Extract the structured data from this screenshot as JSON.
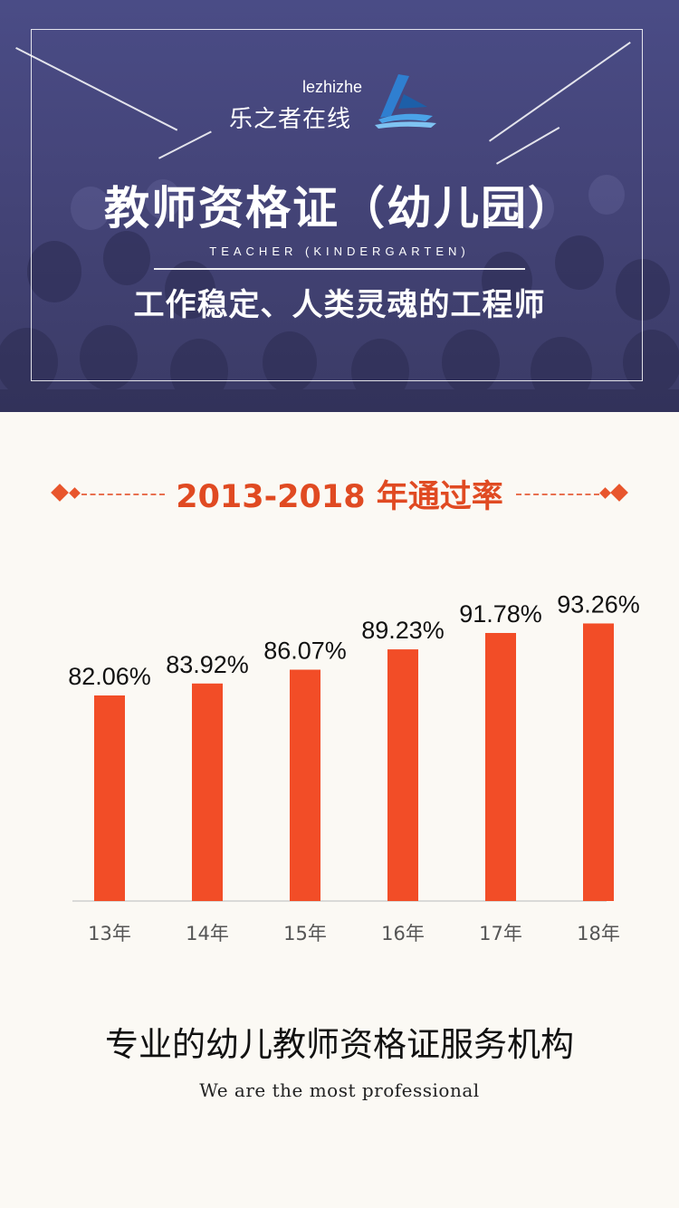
{
  "brand": {
    "en": "lezhizhe",
    "cn": "乐之者在线"
  },
  "hero": {
    "title": "教师资格证（幼儿园）",
    "subtitle_en": "TEACHER (KINDERGARTEN)",
    "tagline": "工作稳定、人类灵魂的工程师"
  },
  "section": {
    "title": "2013-2018 年通过率"
  },
  "chart_data": {
    "type": "bar",
    "title": "2013-2018 年通过率",
    "categories": [
      "13年",
      "14年",
      "15年",
      "16年",
      "17年",
      "18年"
    ],
    "values": [
      82.06,
      83.92,
      86.07,
      89.23,
      91.78,
      93.26
    ],
    "labels": [
      "82.06%",
      "83.92%",
      "86.07%",
      "89.23%",
      "91.78%",
      "93.26%"
    ],
    "xlabel": "",
    "ylabel": "",
    "grid": false,
    "bar_color": "#f24d27"
  },
  "footer": {
    "cn": "专业的幼儿教师资格证服务机构",
    "en": "We are the most professional"
  },
  "colors": {
    "accent": "#e04a22",
    "hero_bg": "#45457a"
  }
}
